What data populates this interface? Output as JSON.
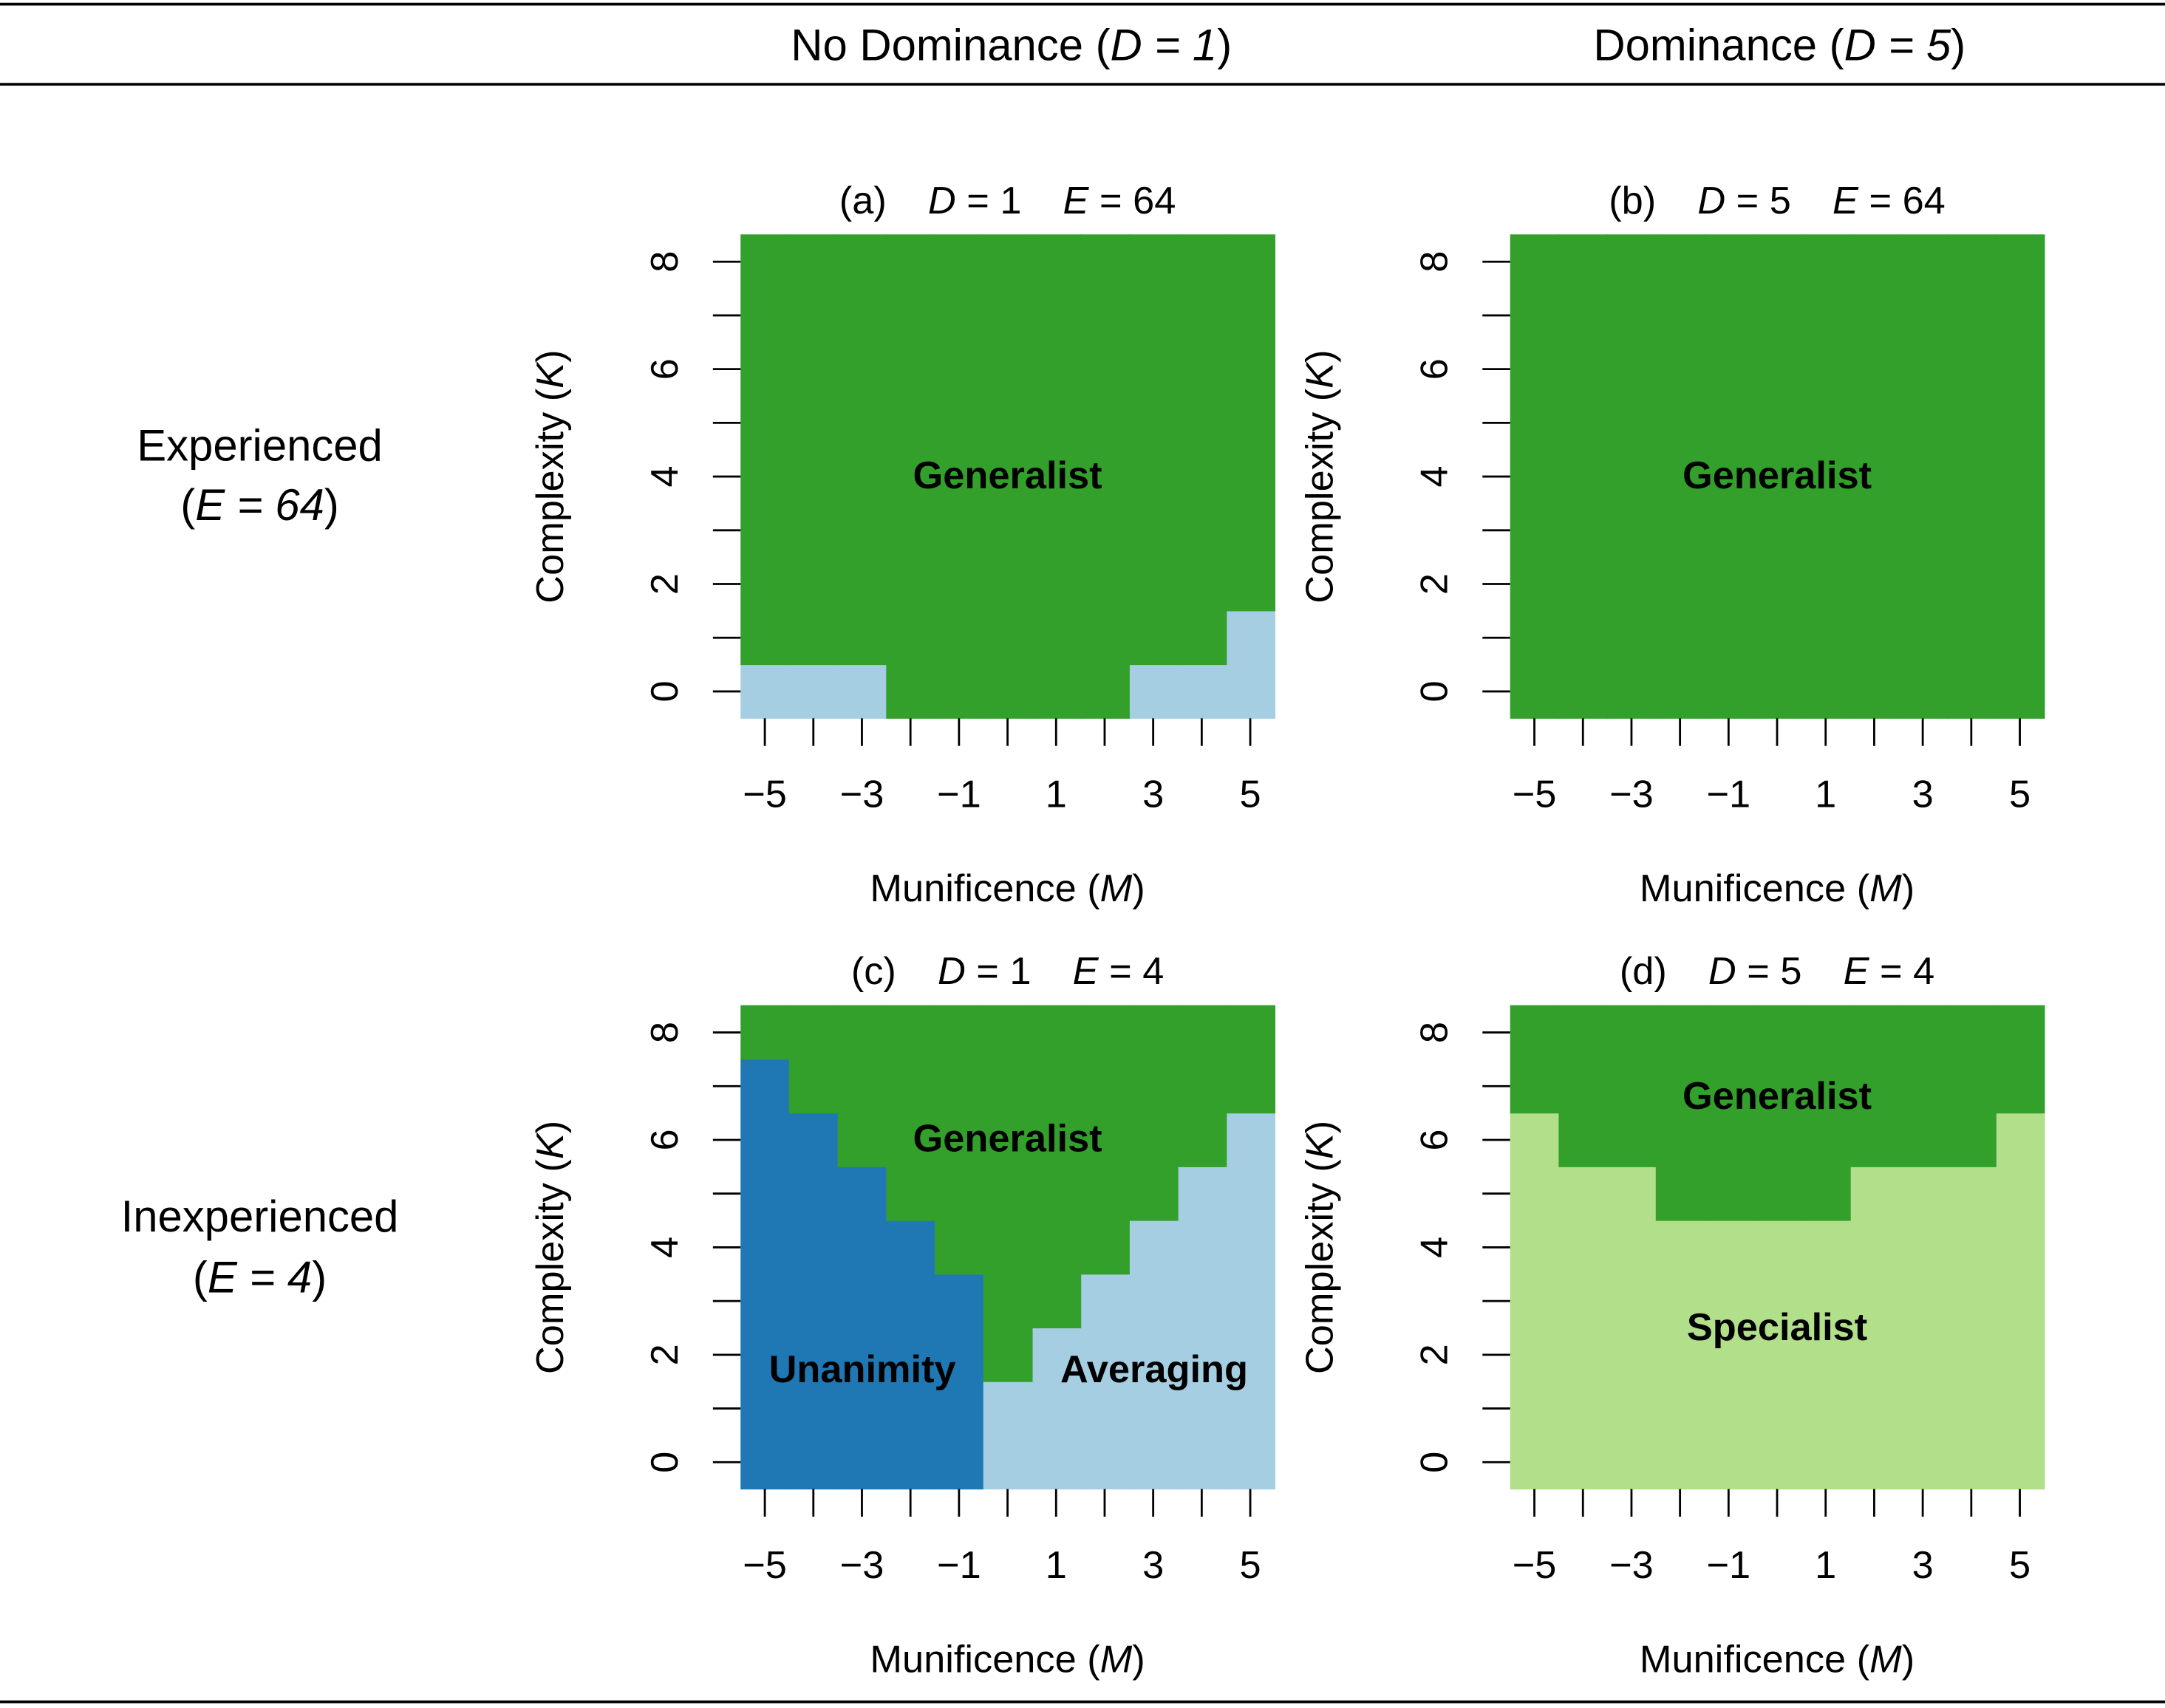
{
  "header": {
    "columns": [
      [
        {
          "text": "No Dominance ("
        },
        {
          "text": "D = 1",
          "italic": true
        },
        {
          "text": ")"
        }
      ],
      [
        {
          "text": "Dominance ("
        },
        {
          "text": "D = 5",
          "italic": true
        },
        {
          "text": ")"
        }
      ]
    ]
  },
  "rows": [
    [
      [
        {
          "text": "Experienced"
        }
      ],
      [
        {
          "text": "("
        },
        {
          "text": "E = 64",
          "italic": true
        },
        {
          "text": ")"
        }
      ]
    ],
    [
      [
        {
          "text": "Inexperienced"
        }
      ],
      [
        {
          "text": "("
        },
        {
          "text": "E = 4",
          "italic": true
        },
        {
          "text": ")"
        }
      ]
    ]
  ],
  "chart_data": [
    {
      "type": "stacked_heatmap",
      "title": [
        {
          "text": "(a)"
        },
        {
          "text": "D",
          "italic": true
        },
        {
          "text": " = 1"
        },
        {
          "text": "E",
          "italic": true
        },
        {
          "text": " = 64"
        }
      ],
      "xlabel": [
        {
          "text": "Munificence ("
        },
        {
          "text": "M",
          "italic": true
        },
        {
          "text": ")"
        }
      ],
      "ylabel": [
        {
          "text": "Complexity ("
        },
        {
          "text": "K",
          "italic": true
        },
        {
          "text": ")"
        }
      ],
      "x": [
        -5,
        -4,
        -3,
        -2,
        -1,
        0,
        1,
        2,
        3,
        4,
        5
      ],
      "xlim": [
        -5.5,
        5.5
      ],
      "ylim": [
        -0.5,
        8.5
      ],
      "xticks": [
        {
          "value": -5,
          "label": "−5"
        },
        {
          "value": -3,
          "label": "−3"
        },
        {
          "value": -1,
          "label": "−1"
        },
        1,
        3,
        5
      ],
      "xticks_minor": [
        -4,
        -2,
        0,
        2,
        4
      ],
      "yticks": [
        0,
        2,
        4,
        6,
        8
      ],
      "yticks_minor": [
        1,
        3,
        5,
        7
      ],
      "series": [
        {
          "color": "#a6cee3",
          "values": [
            1,
            1,
            1,
            0,
            0,
            0,
            0,
            0,
            1,
            1,
            2
          ]
        },
        {
          "name": "Generalist",
          "color": "#33a02c",
          "label_color": "#ffffff",
          "values": [
            8,
            8,
            8,
            9,
            9,
            9,
            9,
            9,
            8,
            8,
            7
          ]
        }
      ]
    },
    {
      "type": "stacked_heatmap",
      "title": [
        {
          "text": "(b)"
        },
        {
          "text": "D",
          "italic": true
        },
        {
          "text": " = 5"
        },
        {
          "text": "E",
          "italic": true
        },
        {
          "text": " = 64"
        }
      ],
      "xlabel": [
        {
          "text": "Munificence ("
        },
        {
          "text": "M",
          "italic": true
        },
        {
          "text": ")"
        }
      ],
      "ylabel": [
        {
          "text": "Complexity ("
        },
        {
          "text": "K",
          "italic": true
        },
        {
          "text": ")"
        }
      ],
      "x": [
        -5,
        -4,
        -3,
        -2,
        -1,
        0,
        1,
        2,
        3,
        4,
        5
      ],
      "xlim": [
        -5.5,
        5.5
      ],
      "ylim": [
        -0.5,
        8.5
      ],
      "xticks": [
        {
          "value": -5,
          "label": "−5"
        },
        {
          "value": -3,
          "label": "−3"
        },
        {
          "value": -1,
          "label": "−1"
        },
        1,
        3,
        5
      ],
      "xticks_minor": [
        -4,
        -2,
        0,
        2,
        4
      ],
      "yticks": [
        0,
        2,
        4,
        6,
        8
      ],
      "yticks_minor": [
        1,
        3,
        5,
        7
      ],
      "series": [
        {
          "name": "Generalist",
          "color": "#33a02c",
          "label_color": "#ffffff",
          "values": [
            9,
            9,
            9,
            9,
            9,
            9,
            9,
            9,
            9,
            9,
            9
          ]
        }
      ]
    },
    {
      "type": "stacked_heatmap",
      "title": [
        {
          "text": "(c)"
        },
        {
          "text": "D",
          "italic": true
        },
        {
          "text": " = 1"
        },
        {
          "text": "E",
          "italic": true
        },
        {
          "text": " = 4"
        }
      ],
      "xlabel": [
        {
          "text": "Munificence ("
        },
        {
          "text": "M",
          "italic": true
        },
        {
          "text": ")"
        }
      ],
      "ylabel": [
        {
          "text": "Complexity ("
        },
        {
          "text": "K",
          "italic": true
        },
        {
          "text": ")"
        }
      ],
      "x": [
        -5,
        -4,
        -3,
        -2,
        -1,
        0,
        1,
        2,
        3,
        4,
        5
      ],
      "xlim": [
        -5.5,
        5.5
      ],
      "ylim": [
        -0.5,
        8.5
      ],
      "xticks": [
        {
          "value": -5,
          "label": "−5"
        },
        {
          "value": -3,
          "label": "−3"
        },
        {
          "value": -1,
          "label": "−1"
        },
        1,
        3,
        5
      ],
      "xticks_minor": [
        -4,
        -2,
        0,
        2,
        4
      ],
      "yticks": [
        0,
        2,
        4,
        6,
        8
      ],
      "yticks_minor": [
        1,
        3,
        5,
        7
      ],
      "series": [
        {
          "name": "Unanimity",
          "color": "#1f78b4",
          "label_color": "#ffffff",
          "values": [
            8,
            7,
            6,
            5,
            4,
            0,
            0,
            0,
            0,
            0,
            0
          ]
        },
        {
          "name": "Averaging",
          "color": "#a6cee3",
          "label_color": "#000000",
          "values": [
            0,
            0,
            0,
            0,
            0,
            2,
            3,
            4,
            5,
            6,
            7
          ]
        },
        {
          "name": "Generalist",
          "color": "#33a02c",
          "label_color": "#ffffff",
          "values": [
            1,
            2,
            3,
            4,
            5,
            7,
            6,
            5,
            4,
            3,
            2
          ]
        }
      ]
    },
    {
      "type": "stacked_heatmap",
      "title": [
        {
          "text": "(d)"
        },
        {
          "text": "D",
          "italic": true
        },
        {
          "text": " = 5"
        },
        {
          "text": "E",
          "italic": true
        },
        {
          "text": " = 4"
        }
      ],
      "xlabel": [
        {
          "text": "Munificence ("
        },
        {
          "text": "M",
          "italic": true
        },
        {
          "text": ")"
        }
      ],
      "ylabel": [
        {
          "text": "Complexity ("
        },
        {
          "text": "K",
          "italic": true
        },
        {
          "text": ")"
        }
      ],
      "x": [
        -5,
        -4,
        -3,
        -2,
        -1,
        0,
        1,
        2,
        3,
        4,
        5
      ],
      "xlim": [
        -5.5,
        5.5
      ],
      "ylim": [
        -0.5,
        8.5
      ],
      "xticks": [
        {
          "value": -5,
          "label": "−5"
        },
        {
          "value": -3,
          "label": "−3"
        },
        {
          "value": -1,
          "label": "−1"
        },
        1,
        3,
        5
      ],
      "xticks_minor": [
        -4,
        -2,
        0,
        2,
        4
      ],
      "yticks": [
        0,
        2,
        4,
        6,
        8
      ],
      "yticks_minor": [
        1,
        3,
        5,
        7
      ],
      "series": [
        {
          "name": "Specialist",
          "color": "#b2df8a",
          "label_color": "#000000",
          "values": [
            7,
            6,
            6,
            5,
            5,
            5,
            5,
            6,
            6,
            6,
            7
          ]
        },
        {
          "name": "Generalist",
          "color": "#33a02c",
          "label_color": "#ffffff",
          "values": [
            2,
            3,
            3,
            4,
            4,
            4,
            4,
            3,
            3,
            3,
            2
          ]
        }
      ]
    }
  ]
}
